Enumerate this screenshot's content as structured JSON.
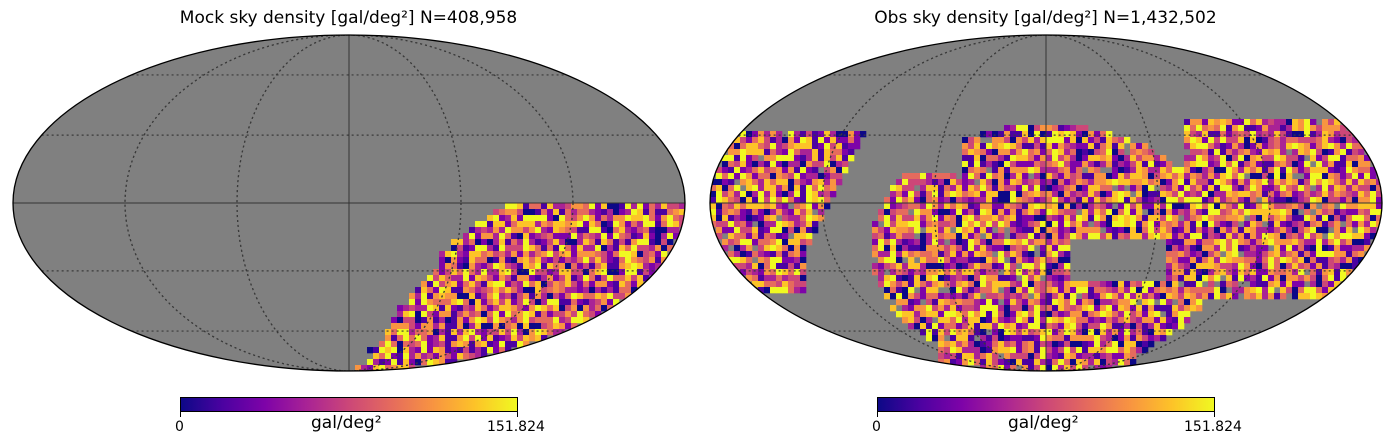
{
  "chart_data": [
    {
      "type": "heatmap",
      "projection": "mollweide",
      "title": "Mock sky density [gal/deg²]  N=408,958",
      "colormap": "plasma",
      "colorbar": {
        "label": "gal/deg²",
        "min_label": "0",
        "max_label": "151.824",
        "min": 0,
        "max": 151.824
      },
      "background_color": "#808080",
      "grid": true,
      "coverage": "lower-right quadrant (lon 0 to -180, lat 0 to -90)"
    },
    {
      "type": "heatmap",
      "projection": "mollweide",
      "title": "Obs sky density [gal/deg²]  N=1,432,502",
      "colormap": "plasma",
      "colorbar": {
        "label": "gal/deg²",
        "min_label": "0",
        "max_label": "151.824",
        "min": 0,
        "max": 151.824
      },
      "background_color": "#808080",
      "grid": true,
      "coverage": "large central blob and two wing regions near lon ±180"
    }
  ]
}
